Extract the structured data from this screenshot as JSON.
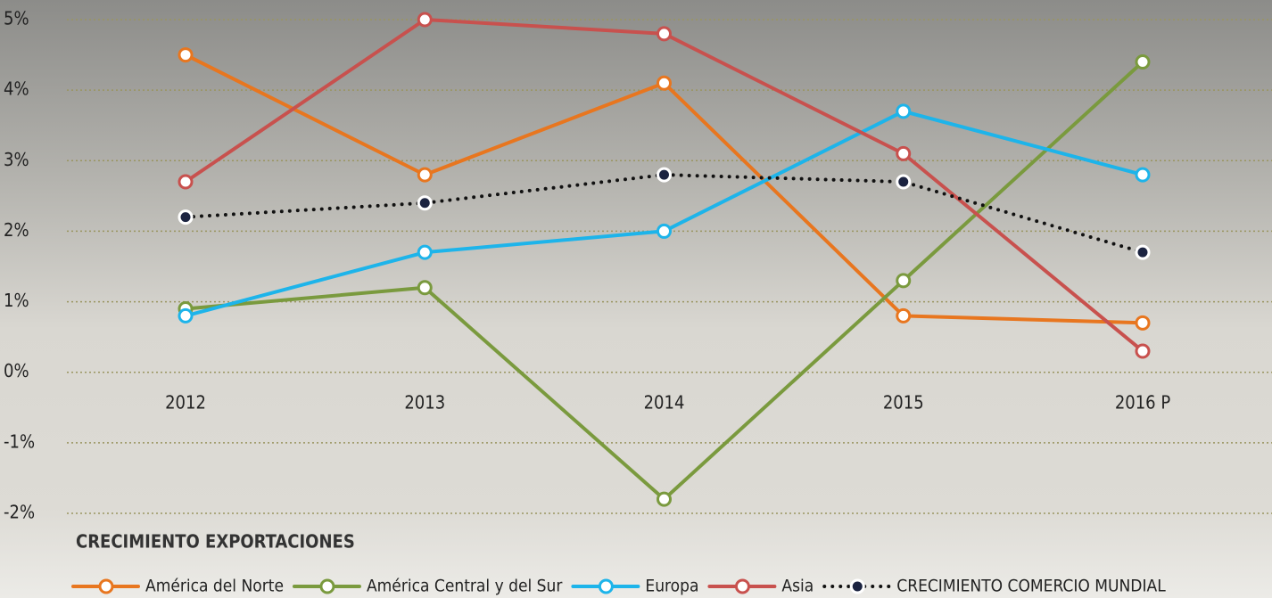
{
  "chart_data": {
    "type": "line",
    "categories": [
      "2012",
      "2013",
      "2014",
      "2015",
      "2016 P"
    ],
    "series": [
      {
        "name": "América del Norte",
        "color": "#e8761f",
        "values": [
          4.5,
          2.8,
          4.1,
          0.8,
          0.7
        ]
      },
      {
        "name": "América Central y del Sur",
        "color": "#7a9a3e",
        "values": [
          0.9,
          1.2,
          -1.8,
          1.3,
          4.4
        ]
      },
      {
        "name": "Europa",
        "color": "#1db4ea",
        "values": [
          0.8,
          1.7,
          2.0,
          3.7,
          2.8
        ]
      },
      {
        "name": "Asia",
        "color": "#c8514e",
        "values": [
          2.7,
          5.0,
          4.8,
          3.1,
          0.3
        ]
      },
      {
        "name": "CRECIMIENTO COMERCIO MUNDIAL",
        "color": "#111111",
        "line_style": "dotted",
        "values": [
          2.2,
          2.4,
          2.8,
          2.7,
          1.7
        ]
      }
    ],
    "ylim": [
      -2,
      5
    ],
    "yticks": [
      {
        "value": -2,
        "label": "-2%"
      },
      {
        "value": -1,
        "label": "-1%"
      },
      {
        "value": 0,
        "label": "0%"
      },
      {
        "value": 1,
        "label": "1%"
      },
      {
        "value": 2,
        "label": "2%"
      },
      {
        "value": 3,
        "label": "3%"
      },
      {
        "value": 4,
        "label": "4%"
      },
      {
        "value": 5,
        "label": "5%"
      }
    ],
    "grid": true,
    "legend_title": "CRECIMIENTO EXPORTACIONES",
    "legend": "bottom"
  }
}
